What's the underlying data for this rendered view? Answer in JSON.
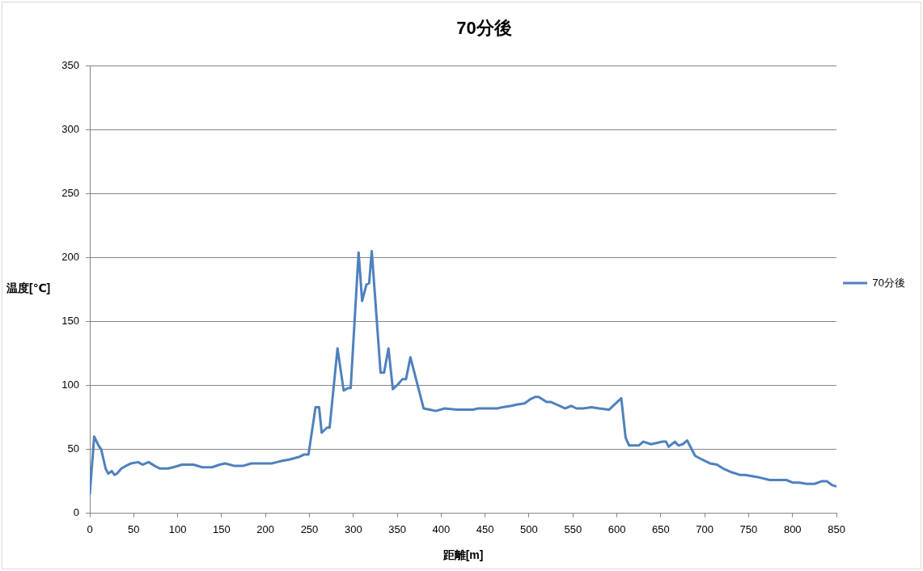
{
  "chart_data": {
    "type": "line",
    "title": "70分後",
    "xlabel": "距離[m]",
    "ylabel": "温度[℃]",
    "x": [
      0,
      5,
      10,
      13,
      18,
      21,
      25,
      28,
      31,
      36,
      41,
      47,
      55,
      60,
      67,
      74,
      80,
      89,
      95,
      105,
      118,
      128,
      139,
      148,
      154,
      165,
      174,
      184,
      207,
      213,
      219,
      227,
      238,
      244,
      249,
      257,
      261,
      264,
      270,
      273,
      282,
      289,
      294,
      297,
      306,
      310,
      315,
      318,
      321,
      331,
      335,
      340,
      345,
      351,
      356,
      360,
      365,
      380,
      387,
      394,
      404,
      418,
      427,
      436,
      442,
      464,
      470,
      480,
      486,
      495,
      501,
      507,
      511,
      520,
      525,
      535,
      541,
      548,
      554,
      562,
      571,
      580,
      591,
      605,
      610,
      614,
      621,
      625,
      630,
      639,
      652,
      656,
      659,
      666,
      670,
      675,
      680,
      689,
      697,
      706,
      714,
      721,
      731,
      740,
      746,
      762,
      774,
      793,
      800,
      808,
      816,
      825,
      833,
      839,
      845,
      850
    ],
    "series": [
      {
        "name": "70分後",
        "color": "#4f81bd",
        "values": [
          15,
          60,
          53,
          50,
          35,
          31,
          33,
          30,
          31,
          35,
          37,
          39,
          40,
          38,
          40,
          37,
          35,
          35,
          36,
          38,
          38,
          36,
          36,
          38,
          39,
          37,
          37,
          39,
          39,
          40,
          41,
          42,
          44,
          46,
          46,
          83,
          83,
          63,
          67,
          67,
          129,
          96,
          98,
          98,
          204,
          166,
          179,
          180,
          205,
          110,
          110,
          129,
          97,
          101,
          105,
          105,
          122,
          82,
          81,
          80,
          82,
          81,
          81,
          81,
          82,
          82,
          83,
          84,
          85,
          86,
          89,
          91,
          91,
          87,
          87,
          84,
          82,
          84,
          82,
          82,
          83,
          82,
          81,
          90,
          59,
          53,
          53,
          53,
          56,
          54,
          56,
          56,
          52,
          56,
          53,
          54,
          57,
          45,
          42,
          39,
          38,
          35,
          32,
          30,
          30,
          28,
          26,
          26,
          24,
          24,
          23,
          23,
          25,
          25,
          22,
          21
        ]
      }
    ],
    "xlim": [
      0,
      850
    ],
    "xticks": [
      0,
      50,
      100,
      150,
      200,
      250,
      300,
      350,
      400,
      450,
      500,
      550,
      600,
      650,
      700,
      750,
      800,
      850
    ],
    "ylim": [
      0,
      350
    ],
    "yticks": [
      0,
      50,
      100,
      150,
      200,
      250,
      300,
      350
    ],
    "grid": "y",
    "legend": "right"
  }
}
